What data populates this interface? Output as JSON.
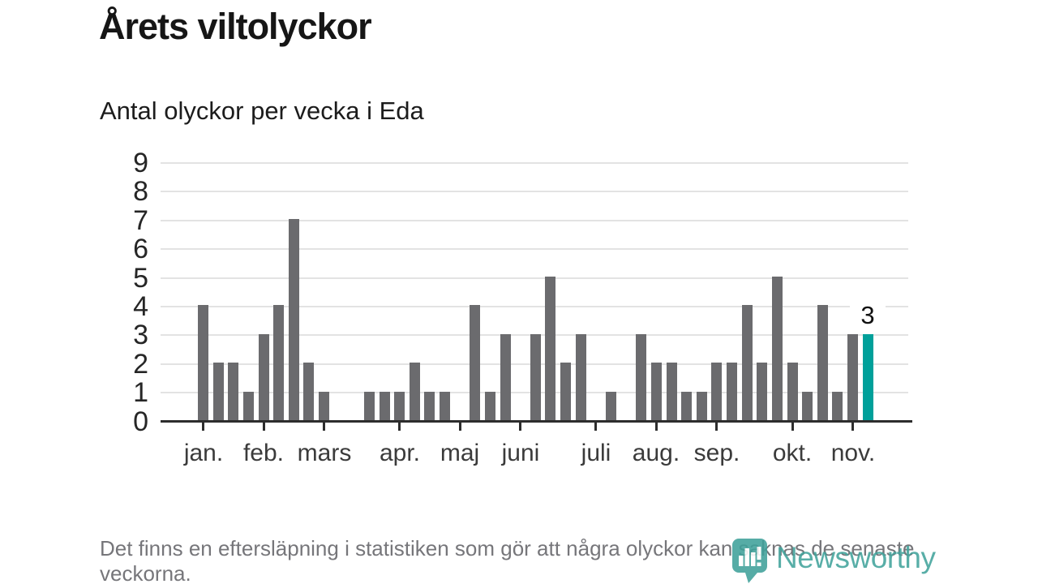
{
  "title": "Årets viltolyckor",
  "subtitle": "Antal olyckor per vecka i Eda",
  "footnote": "Det finns en eftersläpning i statistiken som gör att några olyckor kan saknas de senaste veckorna.",
  "logo": {
    "text": "Newsworthy"
  },
  "chart_data": {
    "type": "bar",
    "title": "Årets viltolyckor",
    "subtitle": "Antal olyckor per vecka i Eda",
    "values": [
      4,
      2,
      2,
      1,
      3,
      4,
      7,
      2,
      1,
      0,
      0,
      1,
      1,
      1,
      2,
      1,
      1,
      0,
      4,
      1,
      3,
      0,
      3,
      5,
      2,
      3,
      0,
      1,
      0,
      3,
      2,
      2,
      1,
      1,
      2,
      2,
      4,
      2,
      5,
      2,
      1,
      4,
      1,
      3,
      3
    ],
    "highlight_index": 44,
    "highlight_label": "3",
    "month_ticks": [
      {
        "label": "jan.",
        "week_index": 0
      },
      {
        "label": "feb.",
        "week_index": 4
      },
      {
        "label": "mars",
        "week_index": 8
      },
      {
        "label": "apr.",
        "week_index": 13
      },
      {
        "label": "maj",
        "week_index": 17
      },
      {
        "label": "juni",
        "week_index": 21
      },
      {
        "label": "juli",
        "week_index": 26
      },
      {
        "label": "aug.",
        "week_index": 30
      },
      {
        "label": "sep.",
        "week_index": 34
      },
      {
        "label": "okt.",
        "week_index": 39
      },
      {
        "label": "nov.",
        "week_index": 43
      }
    ],
    "y_ticks": [
      0,
      1,
      2,
      3,
      4,
      5,
      6,
      7,
      8,
      9
    ],
    "ylim": [
      0,
      9
    ],
    "grid": "horizontal",
    "legend": "none",
    "colors": {
      "bar": "#6b6b6e",
      "highlight": "#00a09a",
      "gridline": "#e3e3e3",
      "axis": "#2d2d2d",
      "logo": "#42a39c"
    }
  }
}
